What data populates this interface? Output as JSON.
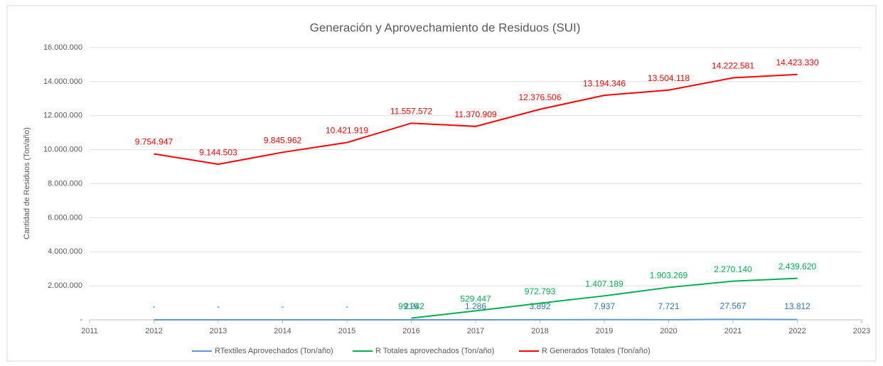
{
  "chart_data": {
    "type": "line",
    "title": "Generación y Aprovechamiento de Residuos (SUI)",
    "y_label": "Cantidad de Residuos (Ton/año)",
    "x": [
      2012,
      2013,
      2014,
      2015,
      2016,
      2017,
      2018,
      2019,
      2020,
      2021,
      2022
    ],
    "xlim": [
      2011,
      2023
    ],
    "xticks": [
      2011,
      2012,
      2013,
      2014,
      2015,
      2016,
      2017,
      2018,
      2019,
      2020,
      2021,
      2022,
      2023
    ],
    "ylim": [
      0,
      16000000
    ],
    "yticks": [
      {
        "value": 0,
        "label": "-"
      },
      {
        "value": 2000000,
        "label": "2.000.000"
      },
      {
        "value": 4000000,
        "label": "4.000.000"
      },
      {
        "value": 6000000,
        "label": "6.000.000"
      },
      {
        "value": 8000000,
        "label": "8.000.000"
      },
      {
        "value": 10000000,
        "label": "10.000.000"
      },
      {
        "value": 12000000,
        "label": "12.000.000"
      },
      {
        "value": 14000000,
        "label": "14.000.000"
      },
      {
        "value": 16000000,
        "label": "16.000.000"
      }
    ],
    "grid": true,
    "legend": "bottom",
    "series": [
      {
        "name": "RTextiles Aprovechados (Ton/año)",
        "color": "#5b9bd5",
        "label_color": "#2e75b6",
        "values": [
          0,
          0,
          0,
          0,
          216,
          1286,
          3892,
          7937,
          7721,
          27567,
          13812
        ],
        "value_labels": [
          "-",
          "-",
          "-",
          "-",
          "216",
          "1.286",
          "3.892",
          "7.937",
          "7.721",
          "27.567",
          "13.812"
        ]
      },
      {
        "name": "R Totales aprovechados (Ton/año)",
        "color": "#00b050",
        "label_color": "#00b050",
        "values": [
          null,
          null,
          null,
          null,
          99242,
          529447,
          972793,
          1407189,
          1903269,
          2270140,
          2439620
        ],
        "value_labels": [
          null,
          null,
          null,
          null,
          "99.242",
          "529.447",
          "972.793",
          "1.407.189",
          "1.903.269",
          "2.270.140",
          "2.439.620"
        ]
      },
      {
        "name": "R Generados Totales (Ton/año)",
        "color": "#ff0000",
        "label_color": "#ff0000",
        "values": [
          9754947,
          9144503,
          9845962,
          10421919,
          11557572,
          11370909,
          12376506,
          13194346,
          13504118,
          14222581,
          14423330
        ],
        "value_labels": [
          "9.754.947",
          "9.144.503",
          "9.845.962",
          "10.421.919",
          "11.557.572",
          "11.370.909",
          "12.376.506",
          "13.194.346",
          "13.504.118",
          "14.222.581",
          "14.423.330"
        ]
      }
    ]
  }
}
